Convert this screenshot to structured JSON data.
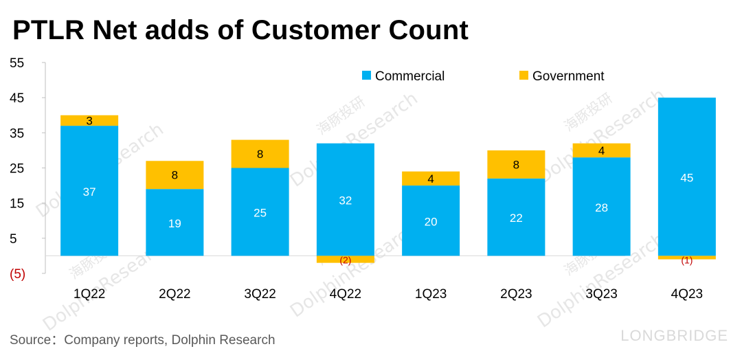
{
  "title": "PTLR Net adds of Customer Count",
  "source": "Source：Company reports, Dolphin Research",
  "brand": "LONGBRIDGE",
  "watermark": [
    "海豚投研",
    "DolphinResearch"
  ],
  "colors": {
    "commercial": "#00b0f0",
    "government": "#ffc000",
    "negative_label": "#c00000",
    "axis_text": "#000000"
  },
  "chart_data": {
    "type": "bar",
    "stacked": true,
    "categories": [
      "1Q22",
      "2Q22",
      "3Q22",
      "4Q22",
      "1Q23",
      "2Q23",
      "3Q23",
      "4Q23"
    ],
    "series": [
      {
        "name": "Commercial",
        "values": [
          37,
          19,
          25,
          32,
          20,
          22,
          28,
          45
        ]
      },
      {
        "name": "Government",
        "values": [
          3,
          8,
          8,
          -2,
          4,
          8,
          4,
          -1
        ]
      }
    ],
    "data_labels": {
      "Commercial": [
        "37",
        "19",
        "25",
        "32",
        "20",
        "22",
        "28",
        "45"
      ],
      "Government": [
        "3",
        "8",
        "8",
        "(2)",
        "4",
        "8",
        "4",
        "(1)"
      ]
    },
    "y_ticks": [
      55,
      45,
      35,
      25,
      15,
      5,
      -5
    ],
    "y_tick_labels": [
      "55",
      "45",
      "35",
      "25",
      "15",
      "5",
      "(5)"
    ],
    "ylim": [
      -5,
      55
    ],
    "legend_position": "top-right",
    "grid": false
  }
}
